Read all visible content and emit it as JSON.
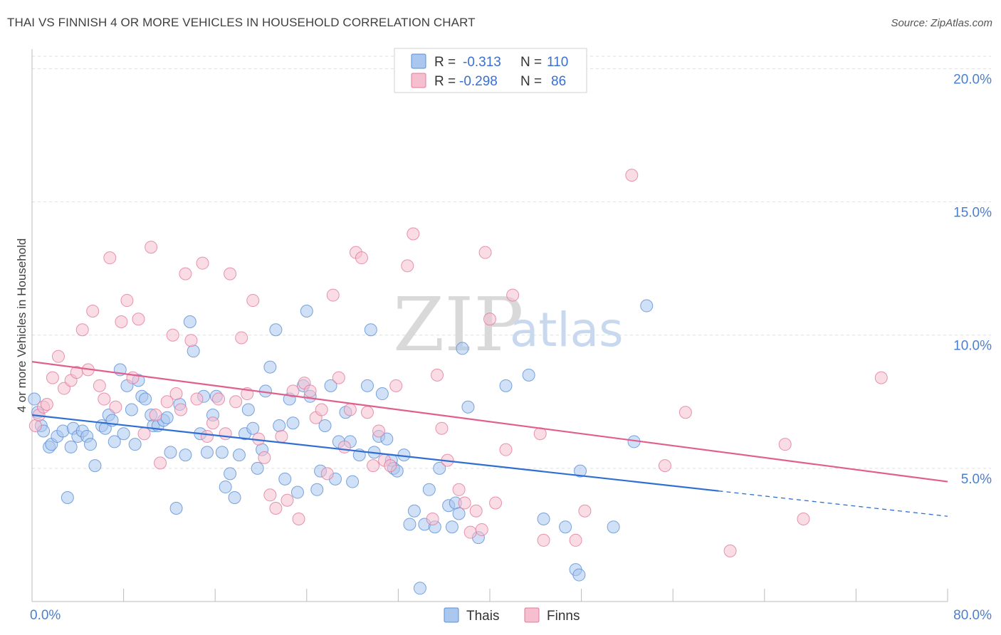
{
  "title": "THAI VS FINNISH 4 OR MORE VEHICLES IN HOUSEHOLD CORRELATION CHART",
  "source": "Source: ZipAtlas.com",
  "watermark": {
    "zip": "ZIP",
    "atlas": "atlas"
  },
  "chart_data": {
    "type": "scatter",
    "xlabel": "",
    "ylabel": "4 or more Vehicles in Household",
    "xlim": [
      0,
      80
    ],
    "ylim": [
      0,
      21
    ],
    "x_tick_labels": [
      {
        "value": 0,
        "label": "0.0%"
      },
      {
        "value": 80,
        "label": "80.0%"
      }
    ],
    "y_tick_labels": [
      {
        "value": 5,
        "label": "5.0%"
      },
      {
        "value": 10,
        "label": "10.0%"
      },
      {
        "value": 15,
        "label": "15.0%"
      },
      {
        "value": 20,
        "label": "20.0%"
      }
    ],
    "x_minor_ticks": [
      0,
      8,
      16,
      24,
      32,
      40,
      48,
      56,
      64,
      72,
      80
    ],
    "grid": "horizontal-dashed",
    "legend": {
      "placement": "top-center",
      "entries": [
        {
          "r_label": "R = ",
          "r_value": "-0.313",
          "n_label": "N = ",
          "n_value": "110",
          "color": "#a9c7ef",
          "edge": "#5a8fd6"
        },
        {
          "r_label": "R = ",
          "r_value": "-0.298",
          "n_label": "N = ",
          "n_value": "86",
          "color": "#f6bfd0",
          "edge": "#e17a9c"
        }
      ]
    },
    "bottom_legend": [
      {
        "label": "Thais",
        "color": "#a9c7ef",
        "edge": "#5a8fd6"
      },
      {
        "label": "Finns",
        "color": "#f6bfd0",
        "edge": "#e17a9c"
      }
    ],
    "series": [
      {
        "name": "Thais",
        "color": "#5a8fd6",
        "fill": "#a9c7ef",
        "trend": {
          "x0": 0,
          "y0": 7.0,
          "x1": 60,
          "y1": 4.15,
          "dash_to": 80,
          "dash_y": 3.2,
          "color": "#2f6fd1"
        },
        "points": [
          [
            0.2,
            7.6
          ],
          [
            0.5,
            7.1
          ],
          [
            0.8,
            6.6
          ],
          [
            1.0,
            6.4
          ],
          [
            1.5,
            5.8
          ],
          [
            1.7,
            5.9
          ],
          [
            2.2,
            6.2
          ],
          [
            2.7,
            6.4
          ],
          [
            3.1,
            3.9
          ],
          [
            3.4,
            5.8
          ],
          [
            3.6,
            6.5
          ],
          [
            4.0,
            6.2
          ],
          [
            4.4,
            6.4
          ],
          [
            4.8,
            6.2
          ],
          [
            5.1,
            5.9
          ],
          [
            5.5,
            5.1
          ],
          [
            6.1,
            6.6
          ],
          [
            6.4,
            6.5
          ],
          [
            6.7,
            7.0
          ],
          [
            7.0,
            6.8
          ],
          [
            7.2,
            6.0
          ],
          [
            7.7,
            8.7
          ],
          [
            8.0,
            6.3
          ],
          [
            8.3,
            8.1
          ],
          [
            8.7,
            7.2
          ],
          [
            9.0,
            5.9
          ],
          [
            9.3,
            8.3
          ],
          [
            9.6,
            7.7
          ],
          [
            9.9,
            7.6
          ],
          [
            10.4,
            7.0
          ],
          [
            10.6,
            6.6
          ],
          [
            11.0,
            6.6
          ],
          [
            11.5,
            6.8
          ],
          [
            11.8,
            6.9
          ],
          [
            12.1,
            5.6
          ],
          [
            12.6,
            3.5
          ],
          [
            12.9,
            7.4
          ],
          [
            13.4,
            5.5
          ],
          [
            13.8,
            10.5
          ],
          [
            14.1,
            9.4
          ],
          [
            14.7,
            6.3
          ],
          [
            15.0,
            7.7
          ],
          [
            15.3,
            5.6
          ],
          [
            15.8,
            7.0
          ],
          [
            16.1,
            7.7
          ],
          [
            16.6,
            5.6
          ],
          [
            16.9,
            4.3
          ],
          [
            17.3,
            4.8
          ],
          [
            17.7,
            3.9
          ],
          [
            18.1,
            5.5
          ],
          [
            18.6,
            6.3
          ],
          [
            18.9,
            7.2
          ],
          [
            19.3,
            6.5
          ],
          [
            19.7,
            5.0
          ],
          [
            20.1,
            5.7
          ],
          [
            20.4,
            7.9
          ],
          [
            20.8,
            8.8
          ],
          [
            21.3,
            10.2
          ],
          [
            21.6,
            6.6
          ],
          [
            22.1,
            4.6
          ],
          [
            22.5,
            7.6
          ],
          [
            22.8,
            6.7
          ],
          [
            23.2,
            4.1
          ],
          [
            23.7,
            8.1
          ],
          [
            24.0,
            10.9
          ],
          [
            24.3,
            7.7
          ],
          [
            24.9,
            4.2
          ],
          [
            25.2,
            4.9
          ],
          [
            25.6,
            6.6
          ],
          [
            26.1,
            8.1
          ],
          [
            26.5,
            4.6
          ],
          [
            26.8,
            6.0
          ],
          [
            27.4,
            7.1
          ],
          [
            27.8,
            6.0
          ],
          [
            28.0,
            4.5
          ],
          [
            28.6,
            5.5
          ],
          [
            29.3,
            8.1
          ],
          [
            29.6,
            10.2
          ],
          [
            29.9,
            5.6
          ],
          [
            30.3,
            6.2
          ],
          [
            30.6,
            7.8
          ],
          [
            31.0,
            6.1
          ],
          [
            31.4,
            5.3
          ],
          [
            31.6,
            5.0
          ],
          [
            31.9,
            4.9
          ],
          [
            32.5,
            5.5
          ],
          [
            33.0,
            2.9
          ],
          [
            33.4,
            3.4
          ],
          [
            33.9,
            0.5
          ],
          [
            34.3,
            2.9
          ],
          [
            34.7,
            4.2
          ],
          [
            35.2,
            2.8
          ],
          [
            35.6,
            5.0
          ],
          [
            36.4,
            3.6
          ],
          [
            36.7,
            2.8
          ],
          [
            37.0,
            3.7
          ],
          [
            37.3,
            3.3
          ],
          [
            37.6,
            9.5
          ],
          [
            38.1,
            7.3
          ],
          [
            39.0,
            2.4
          ],
          [
            41.4,
            8.1
          ],
          [
            43.4,
            8.5
          ],
          [
            44.7,
            3.1
          ],
          [
            46.6,
            2.8
          ],
          [
            47.5,
            1.2
          ],
          [
            47.8,
            1.0
          ],
          [
            47.9,
            4.9
          ],
          [
            50.8,
            2.8
          ],
          [
            52.6,
            6.0
          ],
          [
            53.7,
            11.1
          ]
        ]
      },
      {
        "name": "Finns",
        "color": "#e17a9c",
        "fill": "#f6bfd0",
        "trend": {
          "x0": 0,
          "y0": 9.0,
          "x1": 80,
          "y1": 4.5,
          "color": "#e05f8d"
        },
        "points": [
          [
            0.3,
            6.6
          ],
          [
            0.6,
            7.0
          ],
          [
            1.0,
            7.3
          ],
          [
            1.3,
            7.4
          ],
          [
            1.8,
            8.4
          ],
          [
            2.3,
            9.2
          ],
          [
            2.8,
            8.0
          ],
          [
            3.4,
            8.3
          ],
          [
            3.9,
            8.6
          ],
          [
            4.4,
            10.2
          ],
          [
            4.9,
            8.7
          ],
          [
            5.3,
            10.9
          ],
          [
            5.9,
            8.1
          ],
          [
            6.3,
            7.6
          ],
          [
            6.8,
            12.9
          ],
          [
            7.3,
            7.3
          ],
          [
            7.8,
            10.5
          ],
          [
            8.3,
            11.3
          ],
          [
            8.8,
            8.4
          ],
          [
            9.3,
            10.6
          ],
          [
            9.8,
            6.3
          ],
          [
            10.4,
            13.3
          ],
          [
            10.8,
            7.0
          ],
          [
            11.2,
            5.2
          ],
          [
            11.8,
            7.5
          ],
          [
            12.3,
            10.0
          ],
          [
            12.6,
            7.8
          ],
          [
            13.0,
            7.2
          ],
          [
            13.4,
            12.3
          ],
          [
            13.9,
            9.8
          ],
          [
            14.4,
            7.6
          ],
          [
            14.9,
            12.7
          ],
          [
            15.3,
            6.2
          ],
          [
            15.8,
            6.7
          ],
          [
            16.3,
            7.6
          ],
          [
            16.9,
            6.3
          ],
          [
            17.3,
            12.3
          ],
          [
            17.8,
            7.5
          ],
          [
            18.3,
            9.9
          ],
          [
            18.8,
            7.8
          ],
          [
            19.3,
            11.3
          ],
          [
            19.8,
            6.1
          ],
          [
            20.3,
            5.4
          ],
          [
            20.8,
            4.0
          ],
          [
            21.3,
            3.5
          ],
          [
            21.8,
            6.2
          ],
          [
            22.3,
            3.8
          ],
          [
            22.8,
            7.9
          ],
          [
            23.3,
            3.1
          ],
          [
            23.8,
            8.2
          ],
          [
            24.3,
            7.9
          ],
          [
            24.8,
            6.9
          ],
          [
            25.3,
            7.2
          ],
          [
            25.8,
            4.8
          ],
          [
            26.3,
            11.5
          ],
          [
            26.8,
            8.4
          ],
          [
            27.3,
            5.8
          ],
          [
            27.8,
            7.2
          ],
          [
            28.3,
            13.1
          ],
          [
            28.8,
            12.9
          ],
          [
            29.3,
            7.1
          ],
          [
            29.8,
            5.1
          ],
          [
            30.3,
            6.4
          ],
          [
            30.8,
            5.3
          ],
          [
            31.3,
            5.1
          ],
          [
            31.8,
            8.1
          ],
          [
            32.8,
            12.6
          ],
          [
            33.3,
            13.8
          ],
          [
            35.0,
            3.1
          ],
          [
            35.4,
            8.5
          ],
          [
            35.8,
            6.5
          ],
          [
            36.3,
            5.3
          ],
          [
            37.3,
            4.2
          ],
          [
            37.8,
            3.7
          ],
          [
            38.3,
            2.6
          ],
          [
            38.8,
            3.4
          ],
          [
            39.3,
            2.7
          ],
          [
            39.6,
            13.1
          ],
          [
            40.0,
            10.6
          ],
          [
            40.5,
            3.7
          ],
          [
            41.4,
            5.7
          ],
          [
            42.0,
            11.5
          ],
          [
            44.4,
            6.3
          ],
          [
            44.7,
            2.3
          ],
          [
            47.5,
            2.3
          ],
          [
            48.3,
            3.4
          ]
        ]
      },
      {
        "name": "Finns-extra",
        "color": "#e17a9c",
        "fill": "#f6bfd0",
        "points": [
          [
            52.4,
            16.0
          ],
          [
            55.3,
            5.1
          ],
          [
            57.1,
            7.1
          ],
          [
            61.0,
            1.9
          ],
          [
            65.8,
            5.9
          ],
          [
            67.4,
            3.1
          ],
          [
            74.2,
            8.4
          ]
        ]
      }
    ]
  }
}
